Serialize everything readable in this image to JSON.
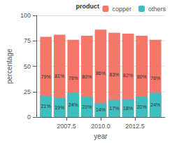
{
  "chart_data": {
    "type": "bar",
    "stacked": true,
    "x": [
      2006,
      2007,
      2008,
      2009,
      2010,
      2011,
      2012,
      2013,
      2014
    ],
    "series": [
      {
        "name": "copper",
        "color": "#F4776A",
        "values": [
          79,
          81,
          76,
          80,
          86,
          83,
          82,
          80,
          76
        ],
        "value_labels": [
          "79%",
          "81%",
          "76%",
          "80%",
          "86%",
          "83%",
          "82%",
          "80%",
          "76%"
        ]
      },
      {
        "name": "others",
        "color": "#3EBEBE",
        "values": [
          21,
          19,
          24,
          20,
          14,
          17,
          18,
          20,
          24
        ],
        "value_labels": [
          "21%",
          "19%",
          "24%",
          "20%",
          "14%",
          "17%",
          "18%",
          "20%",
          "24%"
        ]
      }
    ],
    "xlabel": "year",
    "ylabel": "percentage",
    "xlim": [
      2005.3,
      2014.7
    ],
    "xticks": [
      2007.5,
      {
        "value": 2010,
        "label": "2010.0"
      },
      2012.5
    ],
    "ylim": [
      0,
      100
    ],
    "yticks": [
      0,
      25,
      50,
      75,
      100
    ],
    "grid": true,
    "legend": "upper right",
    "legend_title": "product",
    "data_labels": true
  }
}
